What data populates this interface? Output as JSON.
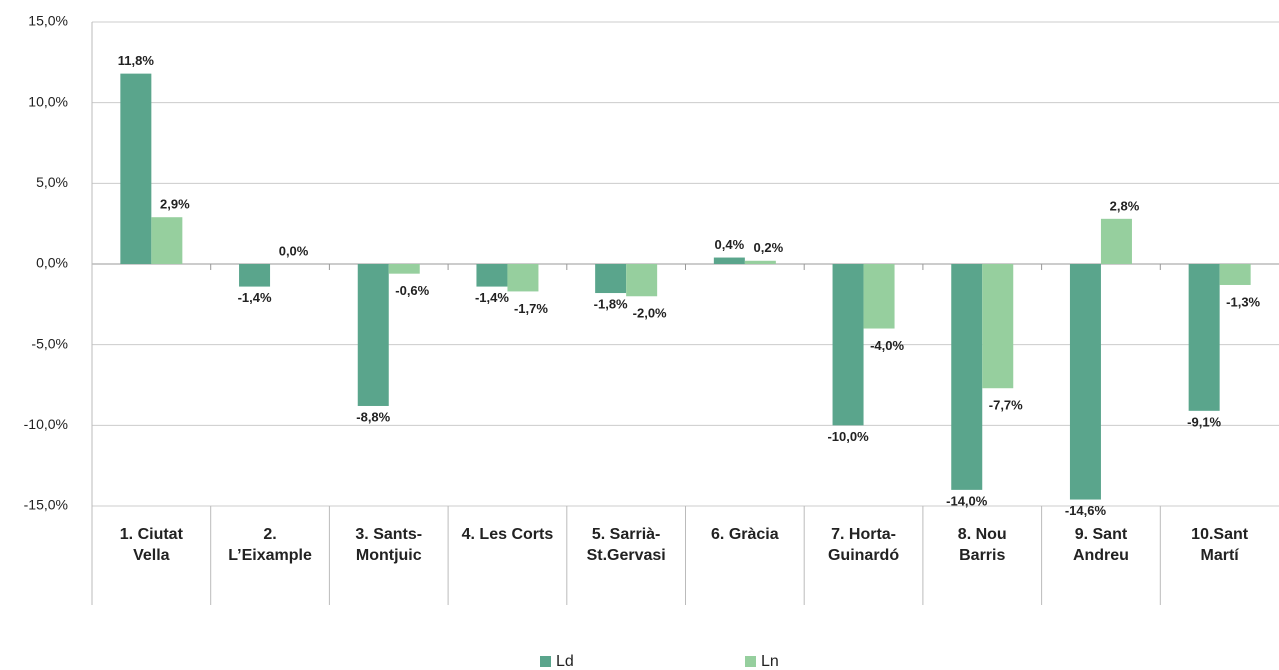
{
  "chart_data": {
    "type": "bar",
    "categories": [
      "1. Ciutat\nVella",
      "2.\nL’Eixample",
      "3. Sants-\nMontjuic",
      "4. Les Corts",
      "5. Sarrià-\nSt.Gervasi",
      "6. Gràcia",
      "7. Horta-\nGuinardó",
      "8. Nou\nBarris",
      "9. Sant\nAndreu",
      "10.Sant\nMartí"
    ],
    "series": [
      {
        "name": "Ld",
        "color": "#5aa58c",
        "values": [
          11.8,
          -1.4,
          -8.8,
          -1.4,
          -1.8,
          0.4,
          -10.0,
          -14.0,
          -14.6,
          -9.1
        ],
        "value_labels": [
          "11,8%",
          "-1,4%",
          "-8,8%",
          "-1,4%",
          "-1,8%",
          "0,4%",
          "-10,0%",
          "-14,0%",
          "-14,6%",
          "-9,1%"
        ]
      },
      {
        "name": "Ln",
        "color": "#96cf9e",
        "values": [
          2.9,
          0.0,
          -0.6,
          -1.7,
          -2.0,
          0.2,
          -4.0,
          -7.7,
          2.8,
          -1.3
        ],
        "value_labels": [
          "2,9%",
          "0,0%",
          "-0,6%",
          "-1,7%",
          "-2,0%",
          "0,2%",
          "-4,0%",
          "-7,7%",
          "2,8%",
          "-1,3%"
        ]
      }
    ],
    "ylim": [
      -15,
      15
    ],
    "yticks": [
      {
        "value": -15,
        "label": "-15,0%"
      },
      {
        "value": -10,
        "label": "-10,0%"
      },
      {
        "value": -5,
        "label": "-5,0%"
      },
      {
        "value": 0,
        "label": "0,0%"
      },
      {
        "value": 5,
        "label": "5,0%"
      },
      {
        "value": 10,
        "label": "10,0%"
      },
      {
        "value": 15,
        "label": "15,0%"
      }
    ],
    "grid": true,
    "legend": "bottom"
  }
}
